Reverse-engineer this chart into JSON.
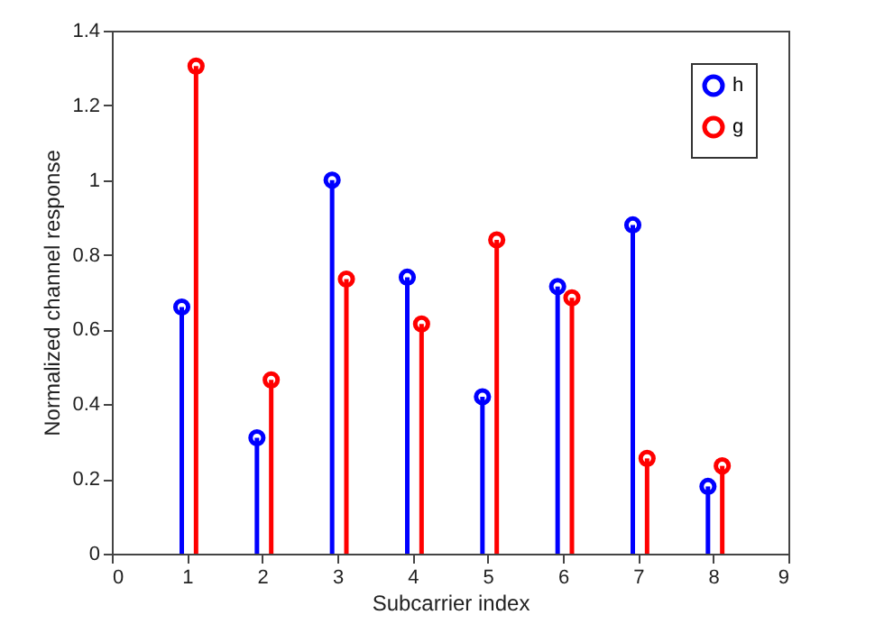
{
  "chart_data": {
    "type": "lollipop",
    "xlabel": "Subcarrier index",
    "ylabel": "Normalized channel response",
    "xlim": [
      0,
      9
    ],
    "xticks": [
      0,
      1,
      2,
      3,
      4,
      5,
      6,
      7,
      8,
      9
    ],
    "ylim": [
      0,
      1.4
    ],
    "yticks": [
      0,
      0.2,
      0.4,
      0.6,
      0.8,
      1,
      1.2,
      1.4
    ],
    "grid": false,
    "legend": "top right",
    "marker": "circle",
    "series": [
      {
        "name": "h",
        "color": "#0000ff",
        "x": [
          0.93,
          1.93,
          2.93,
          3.93,
          4.93,
          5.93,
          6.93,
          7.93
        ],
        "values": [
          0.66,
          0.31,
          1.0,
          0.74,
          0.42,
          0.715,
          0.88,
          0.18
        ]
      },
      {
        "name": "g",
        "color": "#ff0000",
        "x": [
          1.12,
          2.12,
          3.12,
          4.12,
          5.12,
          6.12,
          7.12,
          8.12
        ],
        "values": [
          1.305,
          0.465,
          0.735,
          0.615,
          0.84,
          0.685,
          0.255,
          0.235
        ]
      }
    ]
  }
}
